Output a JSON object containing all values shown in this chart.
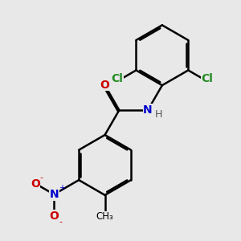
{
  "background_color": "#e8e8e8",
  "bond_color": "#000000",
  "bond_width": 1.8,
  "atom_colors": {
    "N": "#0000cc",
    "O": "#cc0000",
    "Cl": "#228B22"
  },
  "font_size": 10,
  "font_size_h": 9
}
